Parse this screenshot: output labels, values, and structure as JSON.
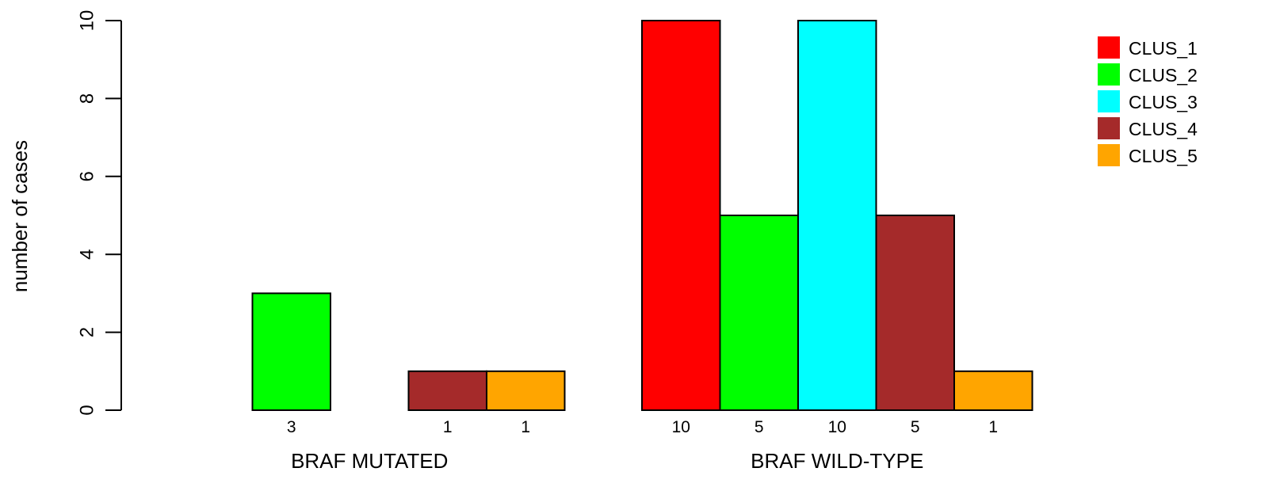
{
  "chart_data": {
    "type": "bar",
    "ylabel": "number of cases",
    "ylim": [
      0,
      10
    ],
    "yticks": [
      0,
      2,
      4,
      6,
      8,
      10
    ],
    "groups": [
      {
        "label": "BRAF MUTATED",
        "values": [
          0,
          3,
          0,
          1,
          1
        ]
      },
      {
        "label": "BRAF WILD-TYPE",
        "values": [
          10,
          5,
          10,
          5,
          1
        ]
      }
    ],
    "series": [
      {
        "name": "CLUS_1",
        "color": "#ff0000"
      },
      {
        "name": "CLUS_2",
        "color": "#00ff00"
      },
      {
        "name": "CLUS_3",
        "color": "#00ffff"
      },
      {
        "name": "CLUS_4",
        "color": "#a52a2a"
      },
      {
        "name": "CLUS_5",
        "color": "#ffa500"
      }
    ],
    "legend_position": "top-right",
    "grid": false
  }
}
